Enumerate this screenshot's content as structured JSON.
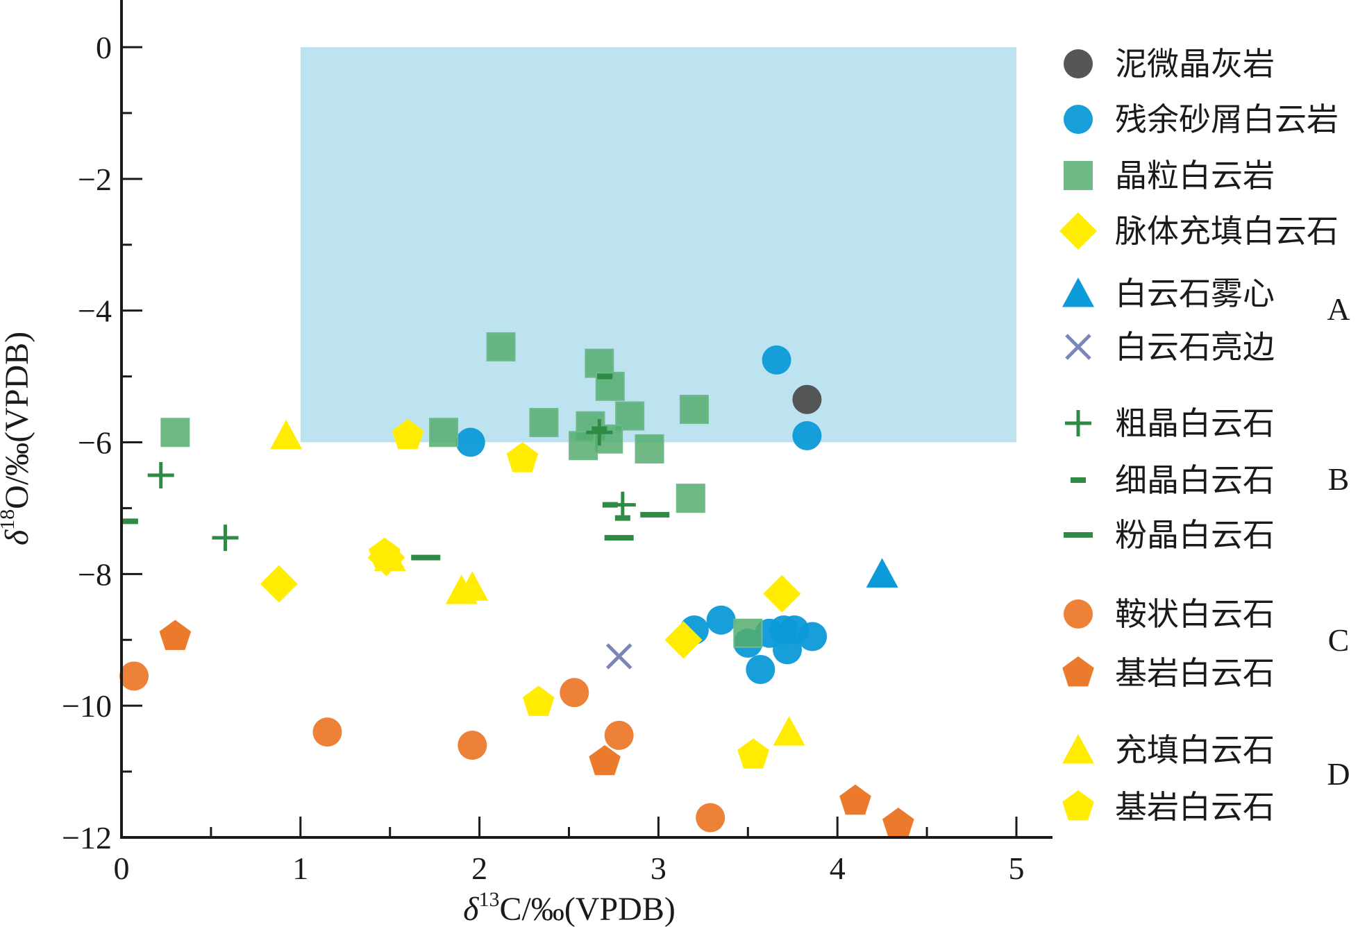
{
  "chart_data": {
    "type": "scatter",
    "xlabel_parts": {
      "delta": "δ",
      "sup": "13",
      "rest": "C/‰(VPDB)"
    },
    "ylabel_parts": {
      "delta": "δ",
      "sup": "18",
      "rest": "O/‰(VPDB)"
    },
    "xlim": [
      0,
      5.2
    ],
    "ylim": [
      -12,
      0.7
    ],
    "xticks": [
      {
        "value": 0,
        "label": "0"
      },
      {
        "value": 1,
        "label": "1"
      },
      {
        "value": 2,
        "label": "2"
      },
      {
        "value": 3,
        "label": "3"
      },
      {
        "value": 4,
        "label": "4"
      },
      {
        "value": 5,
        "label": "5"
      }
    ],
    "yticks": [
      {
        "value": 0,
        "label": "0"
      },
      {
        "value": -2,
        "label": "−2"
      },
      {
        "value": -4,
        "label": "−4"
      },
      {
        "value": -6,
        "label": "−6"
      },
      {
        "value": -8,
        "label": "−8"
      },
      {
        "value": -10,
        "label": "−10"
      },
      {
        "value": -12,
        "label": "−12"
      }
    ],
    "shaded_region": {
      "x": [
        1,
        5
      ],
      "y": [
        -6,
        0
      ],
      "color": "#bde3f1"
    },
    "series": [
      {
        "name": "泥微晶灰岩",
        "marker": "circle",
        "color": "#4d4d4d",
        "points": [
          [
            3.83,
            -5.35
          ]
        ]
      },
      {
        "name": "残余砂屑白云岩",
        "marker": "circle",
        "color": "#0c9ad8",
        "points": [
          [
            1.95,
            -6.0
          ],
          [
            3.66,
            -4.75
          ],
          [
            3.83,
            -5.9
          ],
          [
            3.2,
            -8.85
          ],
          [
            3.35,
            -8.7
          ],
          [
            3.5,
            -9.05
          ],
          [
            3.57,
            -9.45
          ],
          [
            3.62,
            -8.9
          ],
          [
            3.7,
            -8.85
          ],
          [
            3.76,
            -8.85
          ],
          [
            3.72,
            -9.15
          ],
          [
            3.86,
            -8.95
          ]
        ]
      },
      {
        "name": "晶粒白云岩",
        "marker": "square",
        "color": "#55ad6f",
        "points": [
          [
            0.3,
            -5.85
          ],
          [
            2.12,
            -4.55
          ],
          [
            2.67,
            -4.8
          ],
          [
            2.73,
            -5.15
          ],
          [
            1.8,
            -5.85
          ],
          [
            2.36,
            -5.7
          ],
          [
            2.62,
            -5.75
          ],
          [
            2.84,
            -5.6
          ],
          [
            3.2,
            -5.5
          ],
          [
            2.58,
            -6.05
          ],
          [
            2.72,
            -5.95
          ],
          [
            2.95,
            -6.1
          ],
          [
            3.18,
            -6.85
          ],
          [
            3.5,
            -8.9
          ]
        ]
      },
      {
        "name": "脉体充填白云石",
        "marker": "diamond",
        "color": "#ffec00",
        "points": [
          [
            0.88,
            -8.15
          ],
          [
            1.48,
            -7.75
          ],
          [
            3.14,
            -9.0
          ],
          [
            3.69,
            -8.3
          ]
        ]
      },
      {
        "name": "白云石雾心",
        "marker": "triangle",
        "color": "#0c9ad8",
        "points": [
          [
            4.25,
            -8.0
          ]
        ]
      },
      {
        "name": "白云石亮边",
        "marker": "x",
        "color": "#7a86b8",
        "points": [
          [
            2.78,
            -9.25
          ]
        ]
      },
      {
        "name": "粗晶白云石",
        "marker": "plus",
        "color": "#2e8a45",
        "points": [
          [
            0.22,
            -6.5
          ],
          [
            0.58,
            -7.45
          ],
          [
            2.67,
            -5.85
          ],
          [
            2.8,
            -6.95
          ]
        ]
      },
      {
        "name": "细晶白云石",
        "marker": "dash-short",
        "color": "#2e8a45",
        "points": [
          [
            0.05,
            -7.2
          ],
          [
            2.67,
            -5.8
          ],
          [
            2.73,
            -6.95
          ],
          [
            2.8,
            -7.15
          ],
          [
            2.7,
            -5.0
          ]
        ]
      },
      {
        "name": "粉晶白云石",
        "marker": "dash-long",
        "color": "#2e8a45",
        "points": [
          [
            1.7,
            -7.75
          ],
          [
            2.78,
            -7.45
          ],
          [
            2.98,
            -7.1
          ]
        ]
      },
      {
        "name": "鞍状白云石",
        "marker": "circle",
        "color": "#ec7a2d",
        "points": [
          [
            0.07,
            -9.55
          ],
          [
            1.15,
            -10.4
          ],
          [
            1.96,
            -10.6
          ],
          [
            2.53,
            -9.8
          ],
          [
            2.78,
            -10.45
          ],
          [
            3.29,
            -11.7
          ]
        ]
      },
      {
        "name": "基岩白云石",
        "marker": "pentagon",
        "color": "#ec7a2d",
        "points": [
          [
            0.3,
            -8.95
          ],
          [
            2.7,
            -10.85
          ],
          [
            4.1,
            -11.45
          ],
          [
            4.34,
            -11.8
          ]
        ]
      },
      {
        "name": "充填白云石",
        "marker": "triangle",
        "color": "#ffec00",
        "points": [
          [
            0.92,
            -5.9
          ],
          [
            1.5,
            -7.75
          ],
          [
            1.9,
            -8.25
          ],
          [
            1.96,
            -8.2
          ],
          [
            3.73,
            -10.4
          ]
        ]
      },
      {
        "name": "基岩白云石",
        "marker": "pentagon",
        "color": "#ffec00",
        "points": [
          [
            1.6,
            -5.9
          ],
          [
            2.24,
            -6.25
          ],
          [
            1.47,
            -7.7
          ],
          [
            2.33,
            -9.95
          ],
          [
            3.53,
            -10.75
          ]
        ]
      }
    ],
    "legend": {
      "placement": "right",
      "entries": [
        {
          "label": "泥微晶灰岩",
          "marker": "circle",
          "color": "#4d4d4d"
        },
        {
          "label": "残余砂屑白云岩",
          "marker": "circle",
          "color": "#0c9ad8"
        },
        {
          "label": "晶粒白云岩",
          "marker": "square",
          "color": "#55ad6f"
        },
        {
          "label": "脉体充填白云石",
          "marker": "diamond",
          "color": "#ffec00"
        },
        {
          "label": "白云石雾心",
          "marker": "triangle",
          "color": "#0c9ad8"
        },
        {
          "label": "白云石亮边",
          "marker": "x",
          "color": "#7a86b8"
        },
        {
          "label": "粗晶白云石",
          "marker": "plus",
          "color": "#2e8a45"
        },
        {
          "label": "细晶白云石",
          "marker": "dash-short",
          "color": "#2e8a45"
        },
        {
          "label": "粉晶白云石",
          "marker": "dash-long",
          "color": "#2e8a45"
        },
        {
          "label": "鞍状白云石",
          "marker": "circle",
          "color": "#ec7a2d"
        },
        {
          "label": "基岩白云石",
          "marker": "pentagon",
          "color": "#ec7a2d"
        },
        {
          "label": "充填白云石",
          "marker": "triangle",
          "color": "#ffec00"
        },
        {
          "label": "基岩白云石",
          "marker": "pentagon",
          "color": "#ffec00"
        }
      ],
      "groups": [
        {
          "label": "A",
          "entries": [
            4,
            5
          ]
        },
        {
          "label": "B",
          "entries": [
            6,
            7,
            8
          ]
        },
        {
          "label": "C",
          "entries": [
            9,
            10
          ]
        },
        {
          "label": "D",
          "entries": [
            11,
            12
          ]
        }
      ]
    }
  }
}
